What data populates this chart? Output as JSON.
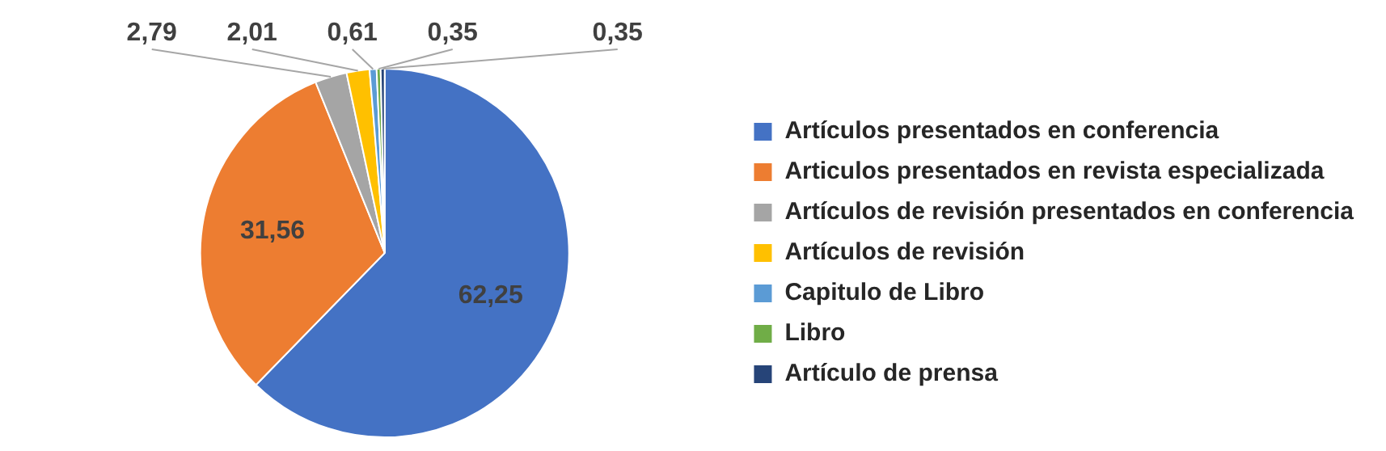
{
  "chart_data": {
    "type": "pie",
    "categories": [
      "Artículos presentados en conferencia",
      "Articulos presentados en revista especializada",
      "Artículos de revisión presentados en conferencia",
      "Artículos de revisión",
      "Capitulo de Libro",
      "Libro",
      "Artículo de prensa"
    ],
    "values": [
      62.25,
      31.56,
      2.79,
      2.01,
      0.61,
      0.35,
      0.35
    ],
    "value_labels": [
      "62,25",
      "31,56",
      "2,79",
      "2,01",
      "0,61",
      "0,35",
      "0,35"
    ],
    "colors": [
      "#4472c4",
      "#ed7d31",
      "#a5a5a5",
      "#ffc000",
      "#5b9bd5",
      "#70ad47",
      "#264478"
    ],
    "legend": "right"
  }
}
